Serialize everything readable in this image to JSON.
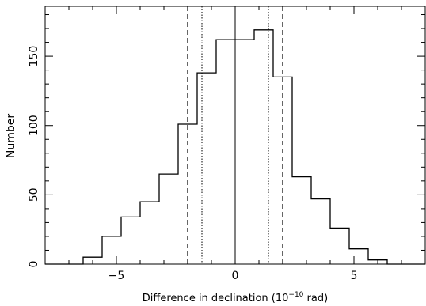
{
  "chart_data": {
    "type": "histogram",
    "title": "",
    "xlabel_main": "Difference in declination (10",
    "xlabel_exp": "−10",
    "xlabel_end": " rad)",
    "ylabel": "Number",
    "xlim": [
      -8,
      8
    ],
    "ylim": [
      0,
      186
    ],
    "x_ticks": [
      -5,
      0,
      5
    ],
    "x_tick_labels": [
      "−5",
      "0",
      "5"
    ],
    "y_ticks": [
      0,
      50,
      100,
      150
    ],
    "y_tick_labels": [
      "0",
      "50",
      "100",
      "150"
    ],
    "bin_width": 0.8,
    "left_histogram": {
      "bin_edges": [
        -8,
        -7.2,
        -6.4,
        -5.6,
        -4.8,
        -4.0,
        -3.2,
        -2.4,
        -1.6,
        -0.8,
        0
      ],
      "counts": [
        0,
        0,
        5,
        20,
        34,
        45,
        65,
        101,
        138,
        162
      ]
    },
    "right_histogram": {
      "bin_edges": [
        0,
        0.8,
        1.6,
        2.4,
        3.2,
        4.0,
        4.8,
        5.6,
        6.4,
        7.2,
        8
      ],
      "counts": [
        162,
        169,
        135,
        63,
        47,
        26,
        11,
        3,
        0,
        0
      ]
    },
    "center_line_x": 0,
    "dashed_lines_x": [
      -2.0,
      2.0
    ],
    "dotted_lines_x": [
      -1.4,
      1.4
    ]
  }
}
